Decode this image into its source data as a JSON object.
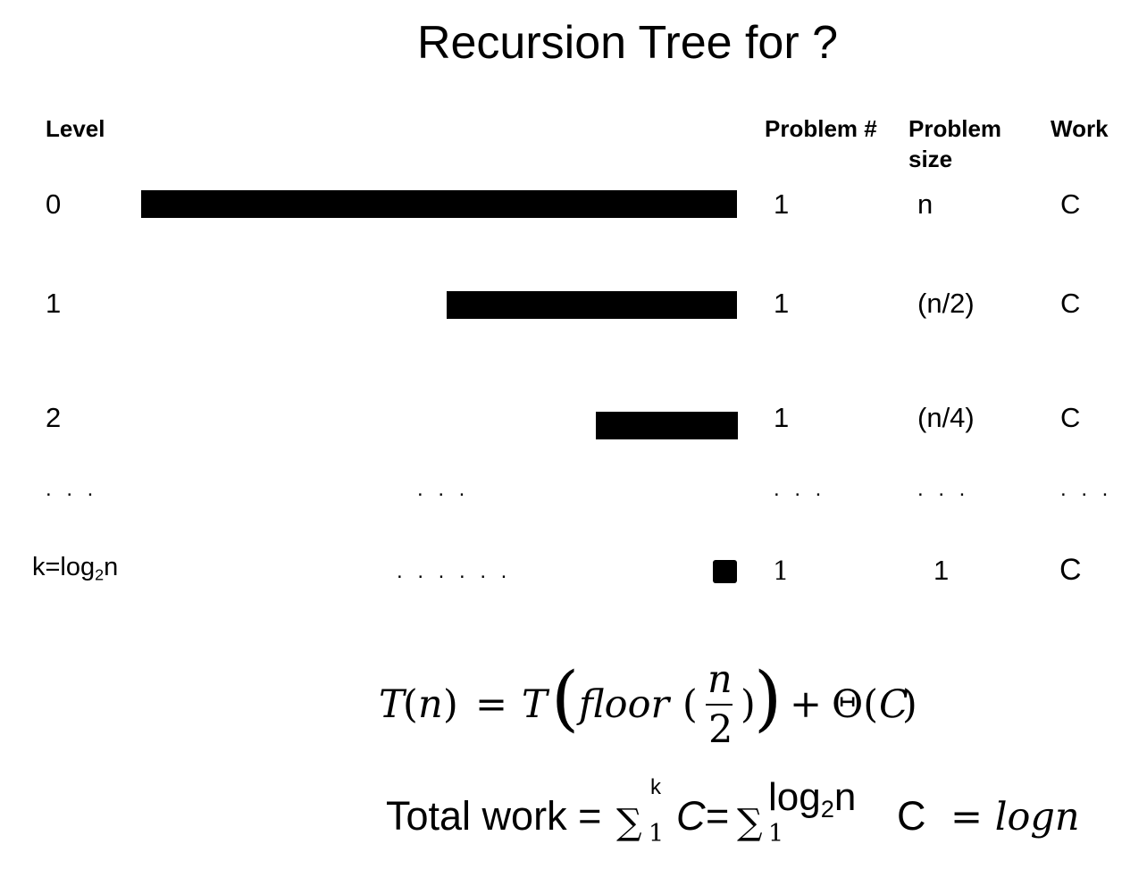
{
  "title": "Recursion Tree for ?",
  "headers": {
    "level": "Level",
    "problem_num": "Problem #",
    "problem_size": "Problem size",
    "work": "Work"
  },
  "rows": [
    {
      "level": "0",
      "problem_num": "1",
      "problem_size": "n",
      "work": "C"
    },
    {
      "level": "1",
      "problem_num": "1",
      "problem_size": "(n/2)",
      "work": "C"
    },
    {
      "level": "2",
      "problem_num": "1",
      "problem_size": "(n/4)",
      "work": "C"
    },
    {
      "level": "k=log2n",
      "problem_num": "1",
      "problem_size": "1",
      "work": "C"
    }
  ],
  "ellipsis": ". . .",
  "ellipsis_long": ". . . . . .",
  "recurrence": "T(n) = T(floor(n/2)) + Θ(C)",
  "total_work": {
    "prefix": "Total work =",
    "sum1_upper": "k",
    "sum1_lower": "1",
    "term1": "C",
    "equals": "=",
    "sum2_upper": "log2n",
    "sum2_lower": "1",
    "term2": "C",
    "result": "= logn"
  }
}
